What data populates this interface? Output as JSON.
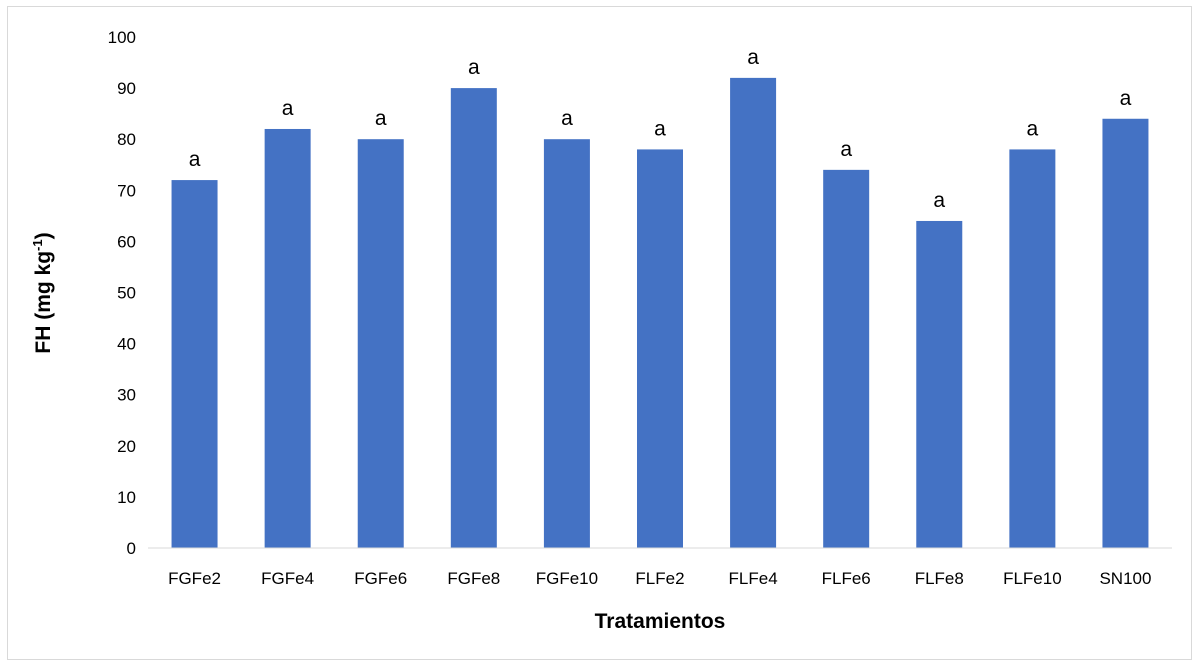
{
  "chart_data": {
    "type": "bar",
    "categories": [
      "FGFe2",
      "FGFe4",
      "FGFe6",
      "FGFe8",
      "FGFe10",
      "FLFe2",
      "FLFe4",
      "FLFe6",
      "FLFe8",
      "FLFe10",
      "SN100"
    ],
    "values": [
      72,
      82,
      80,
      90,
      80,
      78,
      92,
      74,
      64,
      78,
      84
    ],
    "data_labels": [
      "a",
      "a",
      "a",
      "a",
      "a",
      "a",
      "a",
      "a",
      "a",
      "a",
      "a"
    ],
    "title": "",
    "xlabel": "Tratamientos",
    "ylabel": {
      "main": "FH (mg  kg",
      "superscript": "-1",
      "close": ")"
    },
    "ylim": [
      0,
      100
    ],
    "yticks": [
      0,
      10,
      20,
      30,
      40,
      50,
      60,
      70,
      80,
      90,
      100
    ],
    "grid": false,
    "legend": "none",
    "bar_color": "#4472c4"
  }
}
